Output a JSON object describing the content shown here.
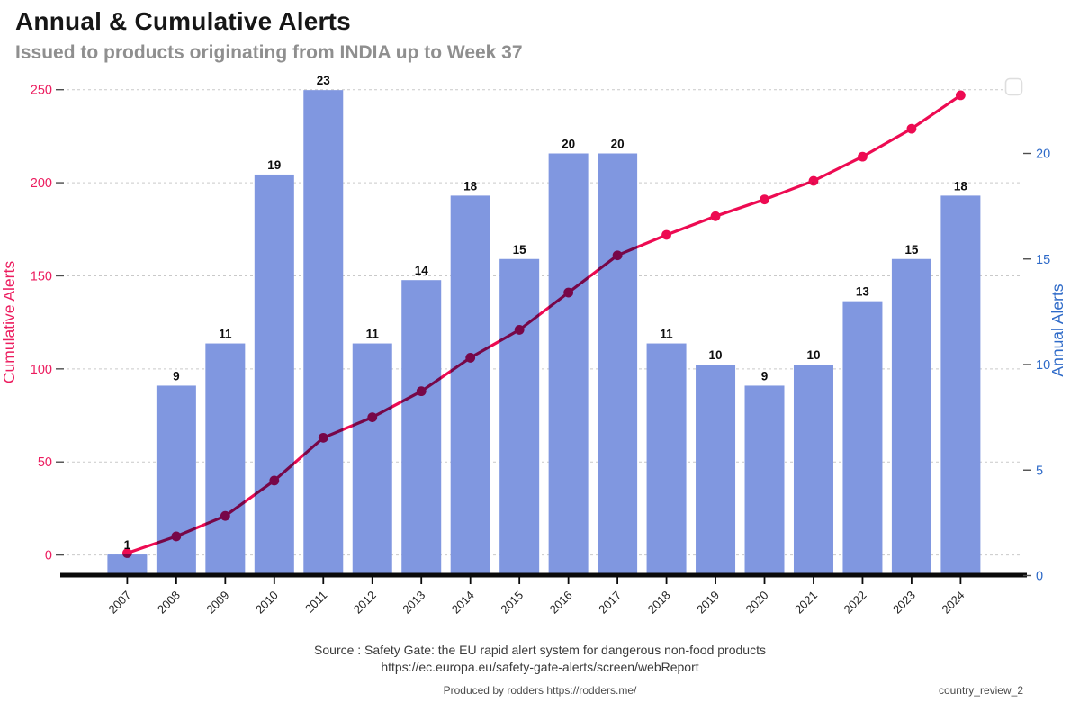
{
  "header": {
    "title": "Annual & Cumulative Alerts",
    "subtitle": "Issued to products originating from INDIA up to Week 37"
  },
  "chart_data": {
    "type": "combo-bar-line",
    "categories": [
      "2007",
      "2008",
      "2009",
      "2010",
      "2011",
      "2012",
      "2013",
      "2014",
      "2015",
      "2016",
      "2017",
      "2018",
      "2019",
      "2020",
      "2021",
      "2022",
      "2023",
      "2024"
    ],
    "series": [
      {
        "name": "Annual Alerts",
        "type": "bar",
        "axis": "right",
        "values": [
          1,
          9,
          11,
          19,
          23,
          11,
          14,
          18,
          15,
          20,
          20,
          11,
          10,
          9,
          10,
          13,
          15,
          18
        ]
      },
      {
        "name": "Cumulative Alerts",
        "type": "line",
        "axis": "left",
        "values": [
          1,
          10,
          21,
          40,
          63,
          74,
          88,
          106,
          121,
          141,
          161,
          172,
          182,
          191,
          201,
          214,
          229,
          247
        ]
      }
    ],
    "left_axis": {
      "title": "Cumulative Alerts",
      "ticks": [
        0,
        50,
        100,
        150,
        200,
        250
      ],
      "range": [
        0,
        258
      ]
    },
    "right_axis": {
      "title": "Annual Alerts",
      "ticks": [
        0,
        5,
        10,
        15,
        20
      ],
      "range": [
        0,
        23
      ]
    },
    "grid": {
      "horizontal": true,
      "style": "dashed"
    },
    "legend": {
      "visible": true,
      "position": "top-right",
      "entries": []
    },
    "colors": {
      "bar": "#8097E0",
      "line": "#ED0B52",
      "line_over_bar": "#7E2D90",
      "left_axis_text": "#EC1D5F",
      "right_axis_text": "#2E6AC8",
      "bar_label": "#0d0d0d",
      "year_label": "#232323",
      "grid_line": "#c9c9c9",
      "tick_mark": "#4d4d4d",
      "axis_line": "#0a0a0a"
    }
  },
  "footer": {
    "source_line1": "Source : Safety Gate: the EU rapid alert system for dangerous non-food products",
    "source_line2": "https://ec.europa.eu/safety-gate-alerts/screen/webReport",
    "produced_by": "Produced by rodders https://rodders.me/",
    "doc_ref": "country_review_2"
  }
}
